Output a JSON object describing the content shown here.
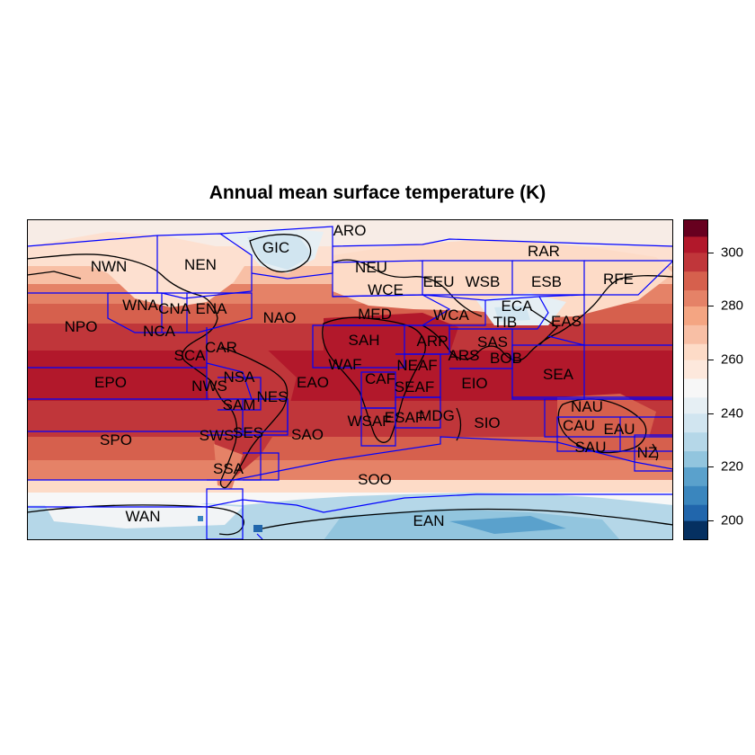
{
  "title": "Annual mean surface temperature (K)",
  "legend": {
    "ticks": [
      "200",
      "220",
      "240",
      "260",
      "280",
      "300"
    ],
    "tick_values": [
      200,
      220,
      240,
      260,
      280,
      300
    ],
    "range": [
      193,
      312
    ],
    "color_bins": [
      {
        "from": 193,
        "to": 200,
        "color": "#053061"
      },
      {
        "from": 200,
        "to": 206,
        "color": "#2166ac"
      },
      {
        "from": 206,
        "to": 213,
        "color": "#3a86be"
      },
      {
        "from": 213,
        "to": 220,
        "color": "#5aa1cc"
      },
      {
        "from": 220,
        "to": 226,
        "color": "#92c5de"
      },
      {
        "from": 226,
        "to": 233,
        "color": "#b5d7e8"
      },
      {
        "from": 233,
        "to": 240,
        "color": "#d1e5f0"
      },
      {
        "from": 240,
        "to": 246,
        "color": "#e6eff4"
      },
      {
        "from": 246,
        "to": 253,
        "color": "#f7f7f7"
      },
      {
        "from": 253,
        "to": 260,
        "color": "#fde8dc"
      },
      {
        "from": 260,
        "to": 266,
        "color": "#fddbc7"
      },
      {
        "from": 266,
        "to": 273,
        "color": "#f8bfa5"
      },
      {
        "from": 273,
        "to": 280,
        "color": "#f4a582"
      },
      {
        "from": 280,
        "to": 286,
        "color": "#e58267"
      },
      {
        "from": 286,
        "to": 293,
        "color": "#d6604d"
      },
      {
        "from": 293,
        "to": 300,
        "color": "#c0363a"
      },
      {
        "from": 300,
        "to": 306,
        "color": "#b2182b"
      },
      {
        "from": 306,
        "to": 312,
        "color": "#67001f"
      }
    ]
  },
  "regions": [
    "ARO",
    "GIC",
    "NWN",
    "NEN",
    "RAR",
    "NEU",
    "EEU",
    "WSB",
    "ESB",
    "RFE",
    "WCE",
    "WNA",
    "CNA",
    "ENA",
    "NAO",
    "NPO",
    "MED",
    "WCA",
    "ECA",
    "TIB",
    "EAS",
    "NCA",
    "SAH",
    "ARP",
    "SAS",
    "SCA",
    "CAR",
    "EPO",
    "NWS",
    "NSA",
    "WAF",
    "NEAF",
    "ARS",
    "BOB",
    "SEA",
    "CAF",
    "SEAF",
    "EAO",
    "EIO",
    "SAM",
    "NES",
    "WSAF",
    "ESAF",
    "MDG",
    "SIO",
    "NAU",
    "CAU",
    "EAU",
    "SAU",
    "NZ",
    "SPO",
    "SWS",
    "SES",
    "SAO",
    "SSA",
    "SOO",
    "WAN",
    "EAN"
  ]
}
